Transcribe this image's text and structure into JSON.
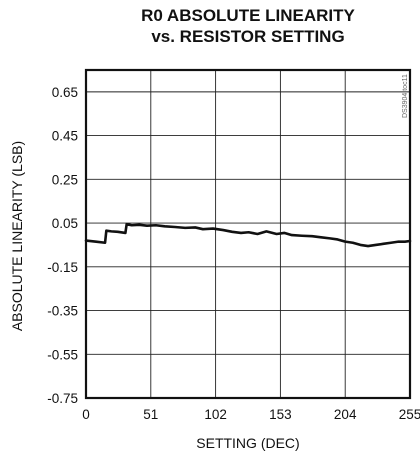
{
  "chart_data": {
    "type": "line",
    "title_lines": [
      "R0 ABSOLUTE LINEARITY",
      "vs. RESISTOR SETTING"
    ],
    "xlabel": "SETTING (DEC)",
    "ylabel": "ABSOLUTE LINEARITY (LSB)",
    "xlim": [
      0,
      255
    ],
    "ylim": [
      -0.75,
      0.75
    ],
    "x_ticks": [
      0,
      51,
      102,
      153,
      204,
      255
    ],
    "x_tick_labels": [
      "0",
      "51",
      "102",
      "153",
      "204",
      "255"
    ],
    "y_ticks": [
      0.65,
      0.45,
      0.25,
      0.05,
      -0.15,
      -0.35,
      -0.55,
      -0.75
    ],
    "y_tick_labels": [
      "0.65",
      "0.45",
      "0.25",
      "0.05",
      "-0.15",
      "-0.35",
      "-0.55",
      "-0.75"
    ],
    "grid": true,
    "side_note": "DS3904 toc11",
    "series": [
      {
        "values": [
          [
            0,
            -0.03
          ],
          [
            8,
            -0.035
          ],
          [
            15,
            -0.04
          ],
          [
            16,
            0.015
          ],
          [
            20,
            0.012
          ],
          [
            25,
            0.01
          ],
          [
            31,
            0.005
          ],
          [
            32,
            0.045
          ],
          [
            36,
            0.04
          ],
          [
            42,
            0.042
          ],
          [
            48,
            0.038
          ],
          [
            55,
            0.04
          ],
          [
            62,
            0.035
          ],
          [
            70,
            0.032
          ],
          [
            78,
            0.028
          ],
          [
            86,
            0.03
          ],
          [
            92,
            0.022
          ],
          [
            100,
            0.025
          ],
          [
            108,
            0.018
          ],
          [
            115,
            0.01
          ],
          [
            122,
            0.005
          ],
          [
            128,
            0.008
          ],
          [
            135,
            0.0
          ],
          [
            142,
            0.012
          ],
          [
            150,
            0.0
          ],
          [
            156,
            0.005
          ],
          [
            162,
            -0.005
          ],
          [
            170,
            -0.008
          ],
          [
            178,
            -0.01
          ],
          [
            185,
            -0.015
          ],
          [
            192,
            -0.02
          ],
          [
            198,
            -0.025
          ],
          [
            204,
            -0.035
          ],
          [
            210,
            -0.04
          ],
          [
            216,
            -0.05
          ],
          [
            222,
            -0.055
          ],
          [
            228,
            -0.05
          ],
          [
            234,
            -0.045
          ],
          [
            240,
            -0.04
          ],
          [
            246,
            -0.035
          ],
          [
            251,
            -0.035
          ],
          [
            255,
            -0.032
          ]
        ]
      }
    ]
  }
}
